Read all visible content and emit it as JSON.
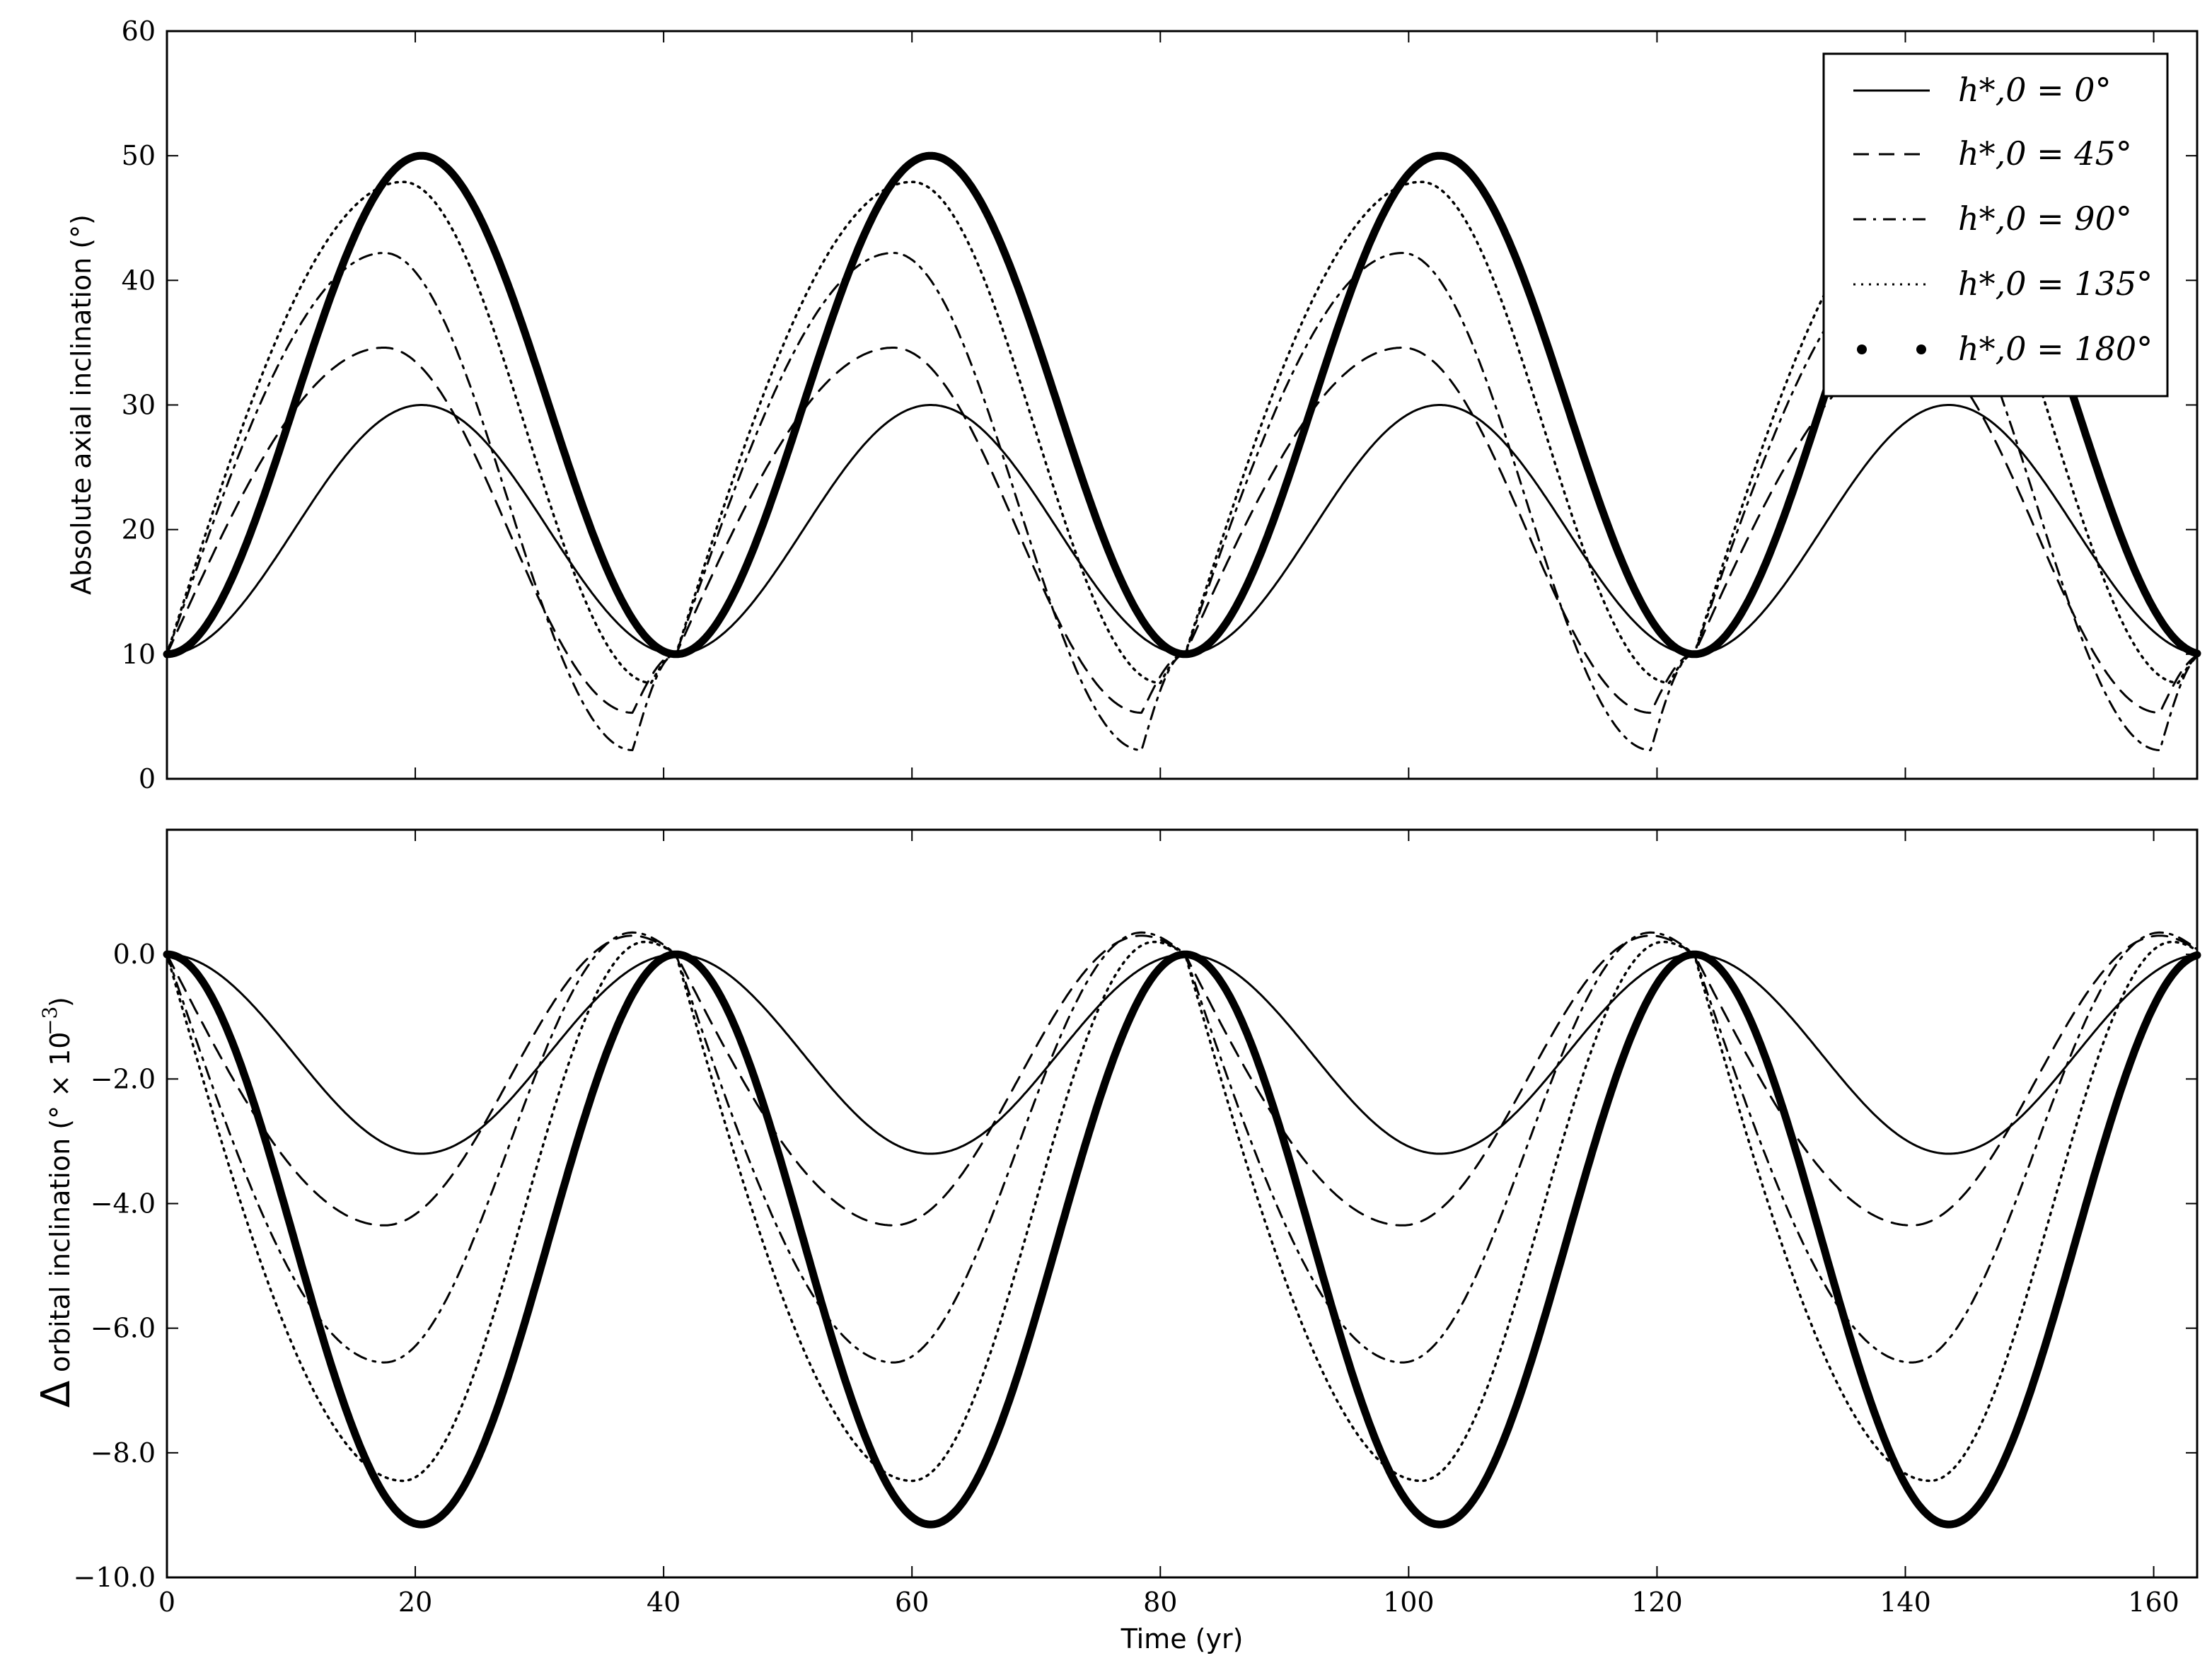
{
  "chart_data": [
    {
      "type": "line",
      "panel": "top",
      "ylabel": "Absolute axial inclination  (°)",
      "xlim": [
        0,
        163.5
      ],
      "ylim": [
        0,
        60
      ],
      "yticks": [
        0,
        10,
        20,
        30,
        40,
        50,
        60
      ],
      "ytick_labels": [
        "0",
        "10",
        "20",
        "30",
        "40",
        "50",
        "60"
      ],
      "xticks": [
        0,
        20,
        40,
        60,
        80,
        100,
        120,
        140,
        160
      ],
      "legend": {
        "placement": "top-right",
        "entries": [
          "h*,0 = 0°",
          "h*,0 = 45°",
          "h*,0 = 90°",
          "h*,0 = 135°",
          "h*,0 = 180°"
        ]
      },
      "series": [
        {
          "name": "h*,0 = 0°",
          "style": "solid",
          "values_at_x": {
            "x": [
              0,
              20.5,
              41,
              61.5,
              82,
              102.5,
              123,
              143.5,
              163.5
            ],
            "y": [
              10,
              30,
              10,
              30,
              10,
              30,
              10,
              30,
              10
            ]
          }
        },
        {
          "name": "h*,0 = 45°",
          "style": "dashed",
          "values_at_x": {
            "x": [
              0,
              17.5,
              37.5,
              41,
              58.5,
              78.5,
              82,
              99,
              119.5,
              123,
              140,
              160.5,
              163.5
            ],
            "y": [
              10,
              34.6,
              5.3,
              10,
              34.6,
              5.3,
              10,
              34.6,
              5.3,
              10,
              34.6,
              5.3,
              10
            ]
          }
        },
        {
          "name": "h*,0 = 90°",
          "style": "dashdot",
          "values_at_x": {
            "x": [
              0,
              17.5,
              37.5,
              41,
              58.5,
              78.5,
              82,
              99,
              119.5,
              123,
              140,
              160.5,
              163.5
            ],
            "y": [
              10,
              42.2,
              2.3,
              10,
              42.2,
              2.3,
              10,
              42.2,
              2.3,
              10,
              42.2,
              2.3,
              10
            ]
          }
        },
        {
          "name": "h*,0 = 135°",
          "style": "dotted",
          "values_at_x": {
            "x": [
              0,
              19,
              39,
              41,
              60,
              80,
              82,
              101,
              121,
              123,
              142,
              162,
              163.5
            ],
            "y": [
              10,
              47.9,
              7.7,
              10,
              47.9,
              7.7,
              10,
              47.9,
              7.7,
              10,
              47.9,
              7.7,
              10
            ]
          }
        },
        {
          "name": "h*,0 = 180°",
          "style": "thick-dots",
          "values_at_x": {
            "x": [
              0,
              20.5,
              41,
              61.5,
              82,
              102.5,
              123,
              143.5,
              163.5
            ],
            "y": [
              10,
              50,
              10,
              50,
              10,
              50,
              10,
              50,
              10
            ]
          }
        }
      ]
    },
    {
      "type": "line",
      "panel": "bottom",
      "xlabel": "Time (yr)",
      "ylabel_prefix": "Δ",
      "ylabel": "orbital inclination  (° × 10",
      "ylabel_exp": "−3",
      "ylabel_close": ")",
      "xlim": [
        0,
        163.5
      ],
      "ylim": [
        -10,
        2
      ],
      "yticks": [
        -10,
        -8,
        -6,
        -4,
        -2,
        0
      ],
      "ytick_labels": [
        "−10.0",
        "−8.0",
        "−6.0",
        "−4.0",
        "−2.0",
        "0.0"
      ],
      "xticks": [
        0,
        20,
        40,
        60,
        80,
        100,
        120,
        140,
        160
      ],
      "xtick_labels": [
        "0",
        "20",
        "40",
        "60",
        "80",
        "100",
        "120",
        "140",
        "160"
      ],
      "series": [
        {
          "name": "h*,0 = 0°",
          "style": "solid",
          "minimum": -3.2
        },
        {
          "name": "h*,0 = 45°",
          "style": "dashed",
          "minimum": -4.35,
          "peak": 0.3
        },
        {
          "name": "h*,0 = 90°",
          "style": "dashdot",
          "minimum": -6.55,
          "peak": 0.35
        },
        {
          "name": "h*,0 = 135°",
          "style": "dotted",
          "minimum": -8.45,
          "peak": 0.2
        },
        {
          "name": "h*,0 = 180°",
          "style": "thick-dots",
          "minimum": -9.15
        }
      ]
    }
  ]
}
